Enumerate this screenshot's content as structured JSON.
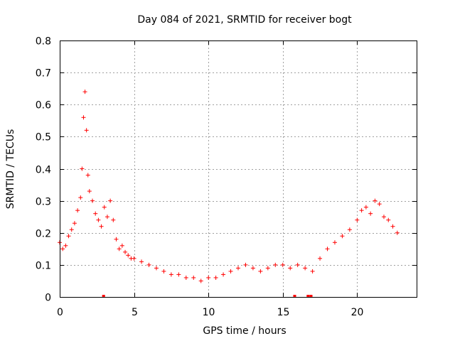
{
  "chart_data": {
    "type": "scatter",
    "title": "Day 084 of 2021, SRMTID for receiver bogt",
    "xlabel": "GPS time / hours",
    "ylabel": "SRMTID / TECUs",
    "xlim": [
      0,
      24
    ],
    "ylim": [
      0,
      0.8
    ],
    "x_ticks": [
      "0",
      "5",
      "10",
      "15",
      "20"
    ],
    "y_ticks": [
      "0",
      "0.1",
      "0.2",
      "0.3",
      "0.4",
      "0.5",
      "0.6",
      "0.7",
      "0.8"
    ],
    "grid": true,
    "marker": "+",
    "color": "#ff0000",
    "series": [
      {
        "name": "SRMTID",
        "x": [
          0.0,
          0.2,
          0.4,
          0.6,
          0.8,
          1.0,
          1.2,
          1.4,
          1.5,
          1.6,
          1.7,
          1.8,
          1.9,
          2.0,
          2.2,
          2.4,
          2.6,
          2.8,
          3.0,
          3.2,
          3.4,
          3.6,
          3.8,
          4.0,
          4.2,
          4.4,
          4.6,
          4.8,
          5.0,
          5.5,
          6.0,
          6.5,
          7.0,
          7.5,
          8.0,
          8.5,
          9.0,
          9.5,
          10.0,
          10.5,
          11.0,
          11.5,
          12.0,
          12.5,
          13.0,
          13.5,
          14.0,
          14.5,
          15.0,
          15.5,
          16.0,
          16.5,
          17.0,
          17.5,
          18.0,
          18.5,
          19.0,
          19.5,
          20.0,
          20.3,
          20.6,
          20.9,
          21.2,
          21.5,
          21.8,
          22.1,
          22.4,
          22.7
        ],
        "y": [
          0.17,
          0.15,
          0.16,
          0.19,
          0.21,
          0.23,
          0.27,
          0.31,
          0.4,
          0.56,
          0.64,
          0.52,
          0.38,
          0.33,
          0.3,
          0.26,
          0.24,
          0.22,
          0.28,
          0.25,
          0.3,
          0.24,
          0.18,
          0.15,
          0.16,
          0.14,
          0.13,
          0.12,
          0.12,
          0.11,
          0.1,
          0.09,
          0.08,
          0.07,
          0.07,
          0.06,
          0.06,
          0.05,
          0.06,
          0.06,
          0.07,
          0.08,
          0.09,
          0.1,
          0.09,
          0.08,
          0.09,
          0.1,
          0.1,
          0.09,
          0.1,
          0.09,
          0.08,
          0.12,
          0.15,
          0.17,
          0.19,
          0.21,
          0.24,
          0.27,
          0.28,
          0.26,
          0.3,
          0.29,
          0.25,
          0.24,
          0.22,
          0.2
        ]
      }
    ],
    "data_gaps_x": [
      2.95,
      15.8,
      16.7,
      16.9
    ]
  }
}
